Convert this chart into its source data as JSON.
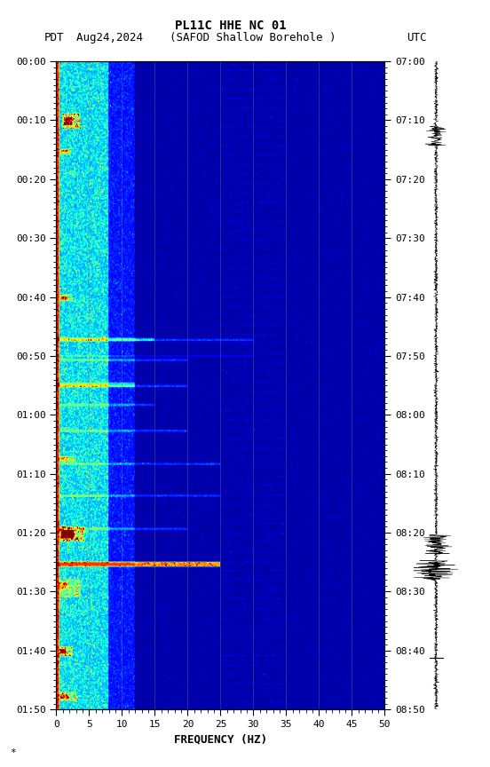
{
  "title_line1": "PL11C HHE NC 01",
  "title_line2_left": "PDT",
  "title_line2_mid": "Aug24,2024    (SAFOD Shallow Borehole )",
  "title_line2_right": "UTC",
  "xlabel": "FREQUENCY (HZ)",
  "freq_min": 0,
  "freq_max": 50,
  "left_yticks": [
    "00:00",
    "00:10",
    "00:20",
    "00:30",
    "00:40",
    "00:50",
    "01:00",
    "01:10",
    "01:20",
    "01:30",
    "01:40",
    "01:50"
  ],
  "right_yticks": [
    "07:00",
    "07:10",
    "07:20",
    "07:30",
    "07:40",
    "07:50",
    "08:00",
    "08:10",
    "08:20",
    "08:30",
    "08:40",
    "08:50"
  ],
  "xticks": [
    0,
    5,
    10,
    15,
    20,
    25,
    30,
    35,
    40,
    45,
    50
  ],
  "vertical_lines_x": [
    5,
    10,
    15,
    20,
    25,
    30,
    35,
    40,
    45
  ],
  "background_color": "#ffffff",
  "cmap": "jet",
  "fig_width": 5.52,
  "fig_height": 8.64,
  "dpi": 100
}
